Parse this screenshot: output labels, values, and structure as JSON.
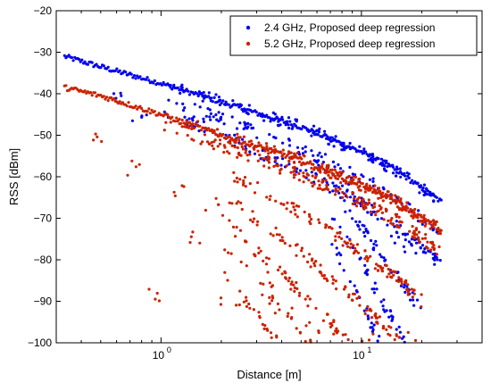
{
  "chart_data": {
    "type": "scatter",
    "xlabel": "Distance [m]",
    "ylabel": "RSS [dBm]",
    "xscale": "log",
    "xlim": [
      0.3,
      40
    ],
    "ylim": [
      -100,
      -20
    ],
    "x_ticks": [
      1,
      10
    ],
    "x_tick_labels": [
      {
        "base": "10",
        "exp": "0"
      },
      {
        "base": "10",
        "exp": "1"
      }
    ],
    "y_ticks": [
      -100,
      -90,
      -80,
      -70,
      -60,
      -50,
      -40,
      -30,
      -20
    ],
    "y_tick_labels": [
      "−100",
      "−90",
      "−80",
      "−70",
      "−60",
      "−50",
      "−40",
      "−30",
      "−20"
    ],
    "grid": false,
    "legend_position": "top-right",
    "series": [
      {
        "name": "2.4 GHz, Proposed deep regression",
        "color": "#0000ee",
        "marker": "dot",
        "trend": [
          [
            0.33,
            -31
          ],
          [
            0.5,
            -33.5
          ],
          [
            1,
            -37.5
          ],
          [
            2,
            -42
          ],
          [
            5,
            -48
          ],
          [
            10,
            -54
          ],
          [
            15,
            -58.5
          ],
          [
            25,
            -66
          ]
        ],
        "bands": [
          {
            "from": 1,
            "to": 25,
            "offsets": [
              0,
              -3,
              -6
            ],
            "count": 380
          },
          {
            "from": 7,
            "to": 20,
            "offsets": [
              -12,
              -18,
              -24
            ],
            "count": 160
          }
        ],
        "sparse": [
          [
            0.6,
            -40
          ],
          [
            0.8,
            -45
          ],
          [
            1.5,
            -47
          ],
          [
            2.6,
            -52
          ],
          [
            4,
            -56
          ],
          [
            6,
            -59
          ],
          [
            9,
            -62
          ],
          [
            12,
            -70
          ],
          [
            16,
            -75
          ],
          [
            18,
            -78
          ]
        ]
      },
      {
        "name": "5.2 GHz, Proposed deep regression",
        "color": "#cc2200",
        "marker": "dot",
        "trend": [
          [
            0.33,
            -38.5
          ],
          [
            0.5,
            -40.5
          ],
          [
            1,
            -45
          ],
          [
            2,
            -50
          ],
          [
            5,
            -56
          ],
          [
            10,
            -62
          ],
          [
            15,
            -66
          ],
          [
            25,
            -73
          ]
        ],
        "bands": [
          {
            "from": 1,
            "to": 25,
            "offsets": [
              0,
              -2
            ],
            "count": 380
          },
          {
            "from": 2,
            "to": 20,
            "offsets": [
              -8,
              -14,
              -20,
              -26,
              -32
            ],
            "count": 520
          }
        ],
        "sparse": [
          [
            0.5,
            -50
          ],
          [
            0.7,
            -58
          ],
          [
            0.9,
            -88
          ],
          [
            1.2,
            -63
          ],
          [
            1.5,
            -74
          ],
          [
            1.9,
            -67
          ],
          [
            2.2,
            -90
          ],
          [
            3,
            -78
          ],
          [
            3.5,
            -85
          ],
          [
            4.2,
            -93
          ],
          [
            5.5,
            -96
          ],
          [
            7,
            -97
          ],
          [
            11,
            -99
          ],
          [
            17,
            -99.5
          ]
        ]
      }
    ]
  }
}
